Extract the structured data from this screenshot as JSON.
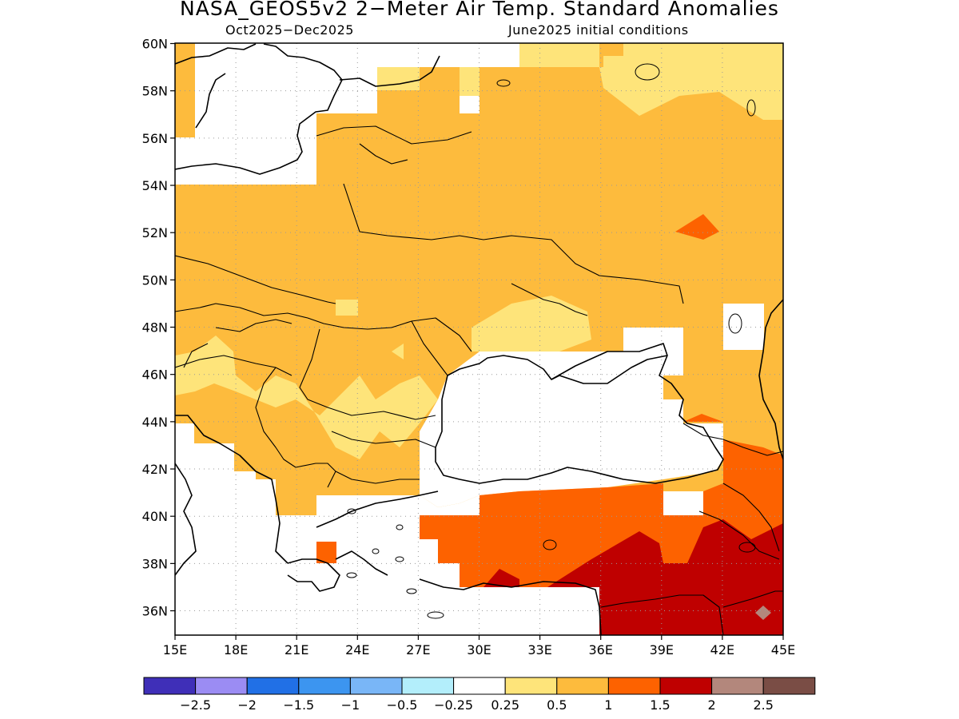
{
  "title": "NASA_GEOS5v2 2−Meter Air Temp. Standard Anomalies",
  "period": "Oct2025−Dec2025",
  "init": "June2025 initial conditions",
  "lat_labels": [
    "60N",
    "58N",
    "56N",
    "54N",
    "52N",
    "50N",
    "48N",
    "46N",
    "44N",
    "42N",
    "40N",
    "38N",
    "36N"
  ],
  "lon_labels": [
    "15E",
    "18E",
    "21E",
    "24E",
    "27E",
    "30E",
    "33E",
    "36E",
    "39E",
    "42E",
    "45E"
  ],
  "colorbar": {
    "colors": [
      "#3f2fb8",
      "#9b8cf3",
      "#2170e6",
      "#3c95f0",
      "#79b6f7",
      "#b3eefb",
      "#ffffff",
      "#fee47a",
      "#fdbb3d",
      "#fd6200",
      "#bf0000",
      "#b3877c",
      "#7a4d45"
    ],
    "labels": [
      "−2.5",
      "−2",
      "−1.5",
      "−1",
      "−0.5",
      "−0.25",
      "0.25",
      "0.5",
      "1",
      "1.5",
      "2",
      "2.5"
    ]
  },
  "legend_palette": {
    "light_yellow": "#fee47a",
    "orange": "#fdbb3d",
    "dark_orange": "#fd6200",
    "red": "#bf0000",
    "brown": "#b3877c"
  }
}
